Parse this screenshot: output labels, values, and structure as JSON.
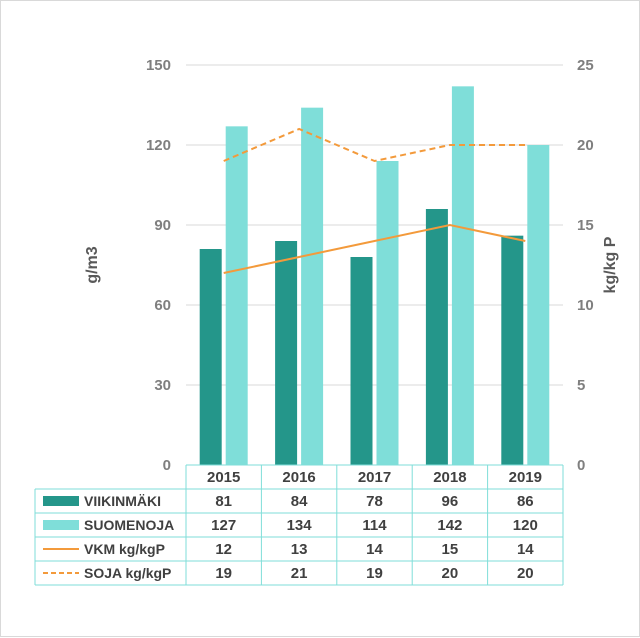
{
  "chart_data": {
    "type": "bar",
    "categories": [
      "2015",
      "2016",
      "2017",
      "2018",
      "2019"
    ],
    "series": [
      {
        "name": "VIIKINMÄKI",
        "kind": "bar",
        "axis": "left",
        "color": "#24968a",
        "values": [
          81,
          84,
          78,
          96,
          86
        ]
      },
      {
        "name": "SUOMENOJA",
        "kind": "bar",
        "axis": "left",
        "color": "#7fded9",
        "values": [
          127,
          134,
          114,
          142,
          120
        ]
      },
      {
        "name": "VKM kg/kgP",
        "kind": "line",
        "axis": "right",
        "color": "#f39a3b",
        "dash": "solid",
        "values": [
          12,
          13,
          14,
          15,
          14
        ]
      },
      {
        "name": "SOJA kg/kgP",
        "kind": "line",
        "axis": "right",
        "color": "#f39a3b",
        "dash": "dashed",
        "values": [
          19,
          21,
          19,
          20,
          20
        ]
      }
    ],
    "ylabel": "g/m3",
    "y2label": "kg/kg P",
    "ylim": [
      0,
      150
    ],
    "y2lim": [
      0,
      25
    ],
    "yticks": [
      "0",
      "30",
      "60",
      "90",
      "120",
      "150"
    ],
    "y2ticks": [
      "0",
      "5",
      "10",
      "15",
      "20",
      "25"
    ],
    "grid": true,
    "data_table": true,
    "legend": "data table (left column)"
  }
}
